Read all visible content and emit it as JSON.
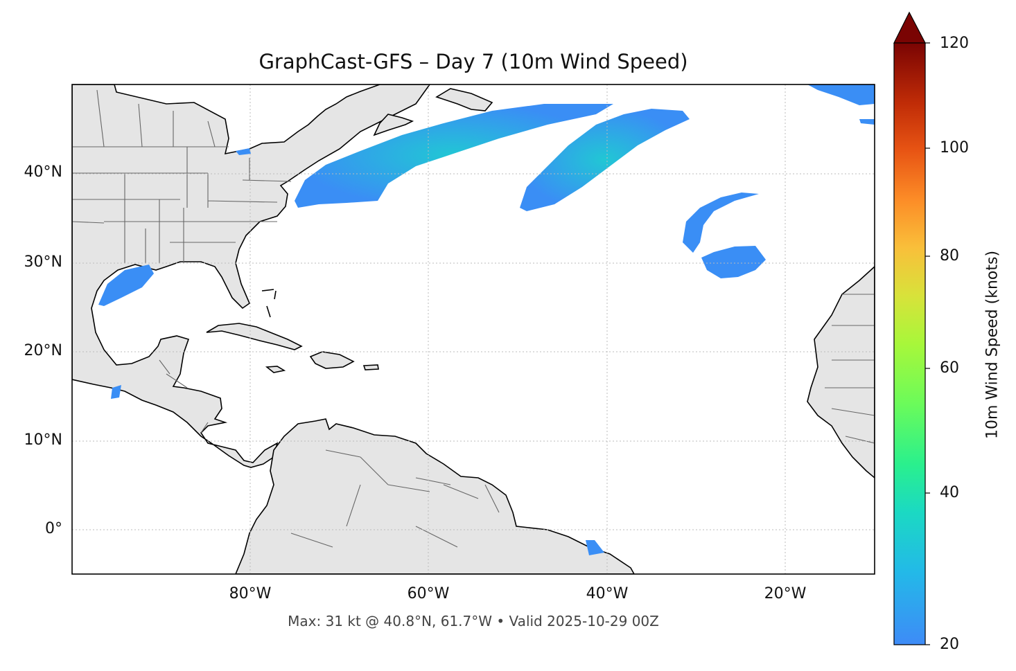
{
  "map": {
    "title": "GraphCast-GFS – Day 7 (10m Wind Speed)",
    "footer": "Max: 31 kt @ 40.8°N, 61.7°W • Valid 2025-10-29 00Z",
    "lat_labels": [
      "40°N",
      "30°N",
      "20°N",
      "10°N",
      "0°"
    ],
    "lon_labels": [
      "80°W",
      "60°W",
      "40°W",
      "20°W"
    ],
    "extent": {
      "lon_min": -100,
      "lon_max": -10,
      "lat_min": -5,
      "lat_max": 50
    },
    "colors": {
      "land": "#e5e5e5",
      "ocean": "#ffffff",
      "coastline": "#000000",
      "borders": "#666666",
      "wind_low": "#3a8ef5",
      "wind_mid": "#1fd3c0"
    }
  },
  "colorbar": {
    "label": "10m Wind Speed (knots)",
    "ticks": [
      "120",
      "100",
      "80",
      "60",
      "40",
      "20"
    ],
    "range": [
      20,
      120
    ],
    "colormap": "turbo"
  }
}
